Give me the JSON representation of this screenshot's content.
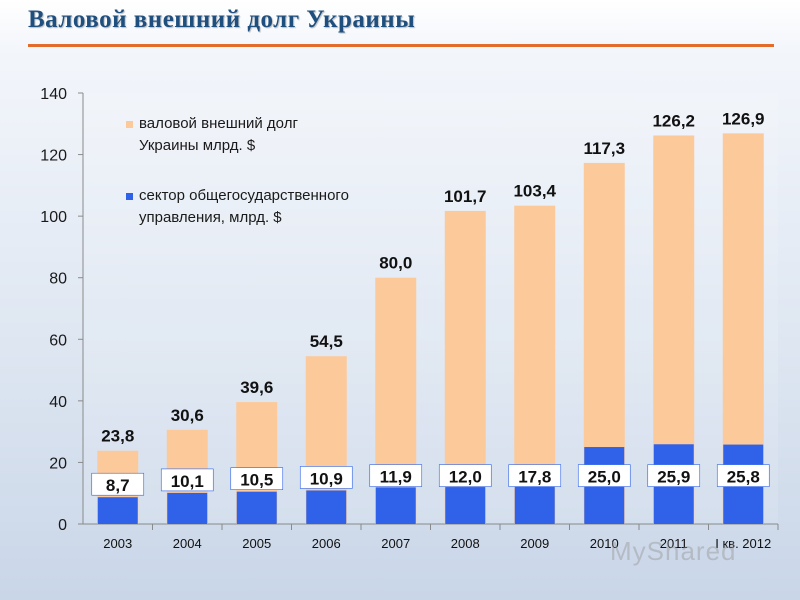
{
  "title": "Валовой внешний долг Украины",
  "watermark": "MyShared",
  "colors": {
    "title": "#1f4f7f",
    "title_rule": "#e46c2a",
    "gross_debt": "#fcc99b",
    "public_sector": "#2f62e8"
  },
  "chart_data": {
    "type": "bar",
    "categories": [
      "2003",
      "2004",
      "2005",
      "2006",
      "2007",
      "2008",
      "2009",
      "2010",
      "2011",
      "I кв. 2012"
    ],
    "series": [
      {
        "name": "валовой внешний долг Украины млрд. $",
        "values": [
          23.8,
          30.6,
          39.6,
          54.5,
          80.0,
          101.7,
          103.4,
          117.3,
          126.2,
          126.9
        ],
        "labels": [
          "23,8",
          "30,6",
          "39,6",
          "54,5",
          "80,0",
          "101,7",
          "103,4",
          "117,3",
          "126,2",
          "126,9"
        ]
      },
      {
        "name": "сектор общегосударственного управления, млрд. $",
        "values": [
          8.7,
          10.1,
          10.5,
          10.9,
          11.9,
          12.0,
          17.8,
          25.0,
          25.9,
          25.8
        ],
        "labels": [
          "8,7",
          "10,1",
          "10,5",
          "10,9",
          "11,9",
          "12,0",
          "17,8",
          "25,0",
          "25,9",
          "25,8"
        ]
      }
    ],
    "ylim": [
      0,
      140
    ],
    "yticks": [
      "0",
      "20",
      "40",
      "60",
      "80",
      "100",
      "120",
      "140"
    ],
    "legend_position": "top-left",
    "grid": false
  }
}
